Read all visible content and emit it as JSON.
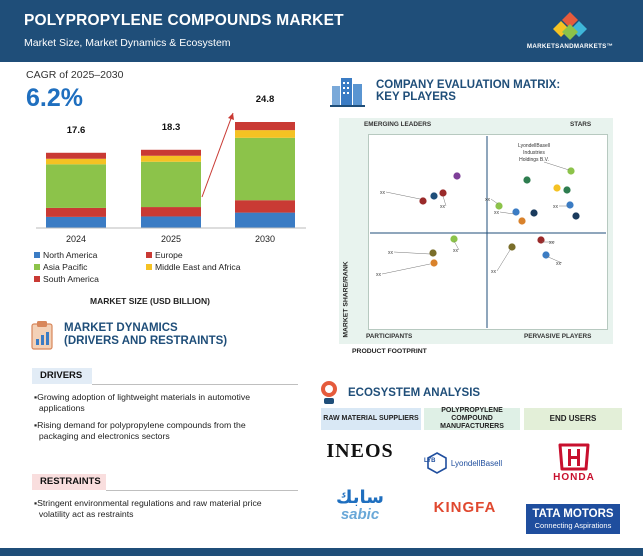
{
  "header": {
    "title": "POLYPROPYLENE COMPOUNDS MARKET",
    "subtitle": "Market Size, Market Dynamics & Ecosystem",
    "logo_text": "MARKETSANDMARKETS™"
  },
  "cagr": {
    "label": "CAGR of 2025–2030",
    "value": "6.2%"
  },
  "chart_data": {
    "type": "bar",
    "stacked": true,
    "categories": [
      "2024",
      "2025",
      "2030"
    ],
    "totals": [
      17.6,
      18.3,
      24.8
    ],
    "total_labels": [
      "17.6",
      "18.3",
      "24.8"
    ],
    "series": [
      {
        "name": "North America",
        "color": "#3b7cc4",
        "values": [
          2.6,
          2.7,
          3.6
        ]
      },
      {
        "name": "Europe",
        "color": "#c93a34",
        "values": [
          2.1,
          2.2,
          2.9
        ]
      },
      {
        "name": "Asia Pacific",
        "color": "#8cc34a",
        "values": [
          10.2,
          10.6,
          14.6
        ]
      },
      {
        "name": "Middle East and Africa",
        "color": "#f5c223",
        "values": [
          1.3,
          1.4,
          1.8
        ]
      },
      {
        "name": "South America",
        "color": "#c93a34",
        "values": [
          1.4,
          1.4,
          1.9
        ]
      }
    ],
    "xlabel": "MARKET SIZE (USD BILLION)",
    "legend_position": "bottom",
    "trend_arrow": "2025 to 2030"
  },
  "dynamics": {
    "title_line1": "MARKET DYNAMICS",
    "title_line2": "(DRIVERS AND RESTRAINTS)",
    "drivers_label": "DRIVERS",
    "drivers": [
      "▪Growing adoption of lightweight materials in automotive",
      "  applications",
      "▪Rising demand for polypropylene compounds from the",
      "  packaging and electronics sectors"
    ],
    "restraints_label": "RESTRAINTS",
    "restraints": [
      "▪Stringent environmental regulations and raw material price",
      "  volatility act as restraints"
    ]
  },
  "matrix": {
    "title_line1": "COMPANY EVALUATION MATRIX:",
    "title_line2": "KEY PLAYERS",
    "quadrants": {
      "top_left": "EMERGING LEADERS",
      "top_right": "STARS",
      "bottom_left": "PARTICIPANTS",
      "bottom_right": "PERVASIVE PLAYERS"
    },
    "y_axis": "MARKET SHARE/RANK",
    "x_axis": "PRODUCT FOOTPRINT",
    "highlight_label": "LyondellBasell Industries Holdings B.V.",
    "placeholder_label": "xx",
    "dot_colors": [
      "#7e3f98",
      "#9a2a2a",
      "#1f4e79",
      "#2e7d4f",
      "#8cc34a",
      "#f5c223",
      "#3b7cc4",
      "#7a6e2a",
      "#d9822b",
      "#26a69a",
      "#1a3b5d"
    ]
  },
  "ecosystem": {
    "title": "ECOSYSTEM ANALYSIS",
    "columns": [
      {
        "label": "RAW MATERIAL SUPPLIERS",
        "color": "#d9e8f5",
        "brands": [
          "INEOS",
          "sabic"
        ]
      },
      {
        "label": "POLYPROPYLENE COMPOUND MANUFACTURERS",
        "color": "#dff0e6",
        "brands": [
          "LyondellBasell",
          "KINGFA"
        ]
      },
      {
        "label": "END USERS",
        "color": "#e3efd8",
        "brands": [
          "HONDA",
          "TATA MOTORS"
        ]
      }
    ],
    "sabic_arabic": "سابك",
    "lyb_mark": "LYB",
    "tata_tagline": "Connecting Aspirations"
  }
}
